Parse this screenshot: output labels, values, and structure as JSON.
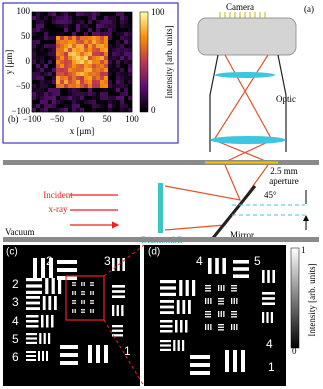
{
  "panel_b": {
    "label": "(b)",
    "x_label": "x [μm]",
    "y_label": "y [μm]",
    "x_ticks": [
      "−100",
      "−50",
      "0",
      "50",
      "100"
    ],
    "y_ticks": [
      "100",
      "50",
      "0",
      "−50",
      "−100"
    ],
    "colorbar_ticks": [
      "100",
      "0"
    ],
    "colorbar_label": "Intensity [arb. units]"
  },
  "panel_a": {
    "label": "(a)",
    "camera": "Camera",
    "optic": "Optic",
    "aperture_size": "2.5 mm",
    "aperture": "aperture",
    "angle": "45°",
    "incident_1": "Incident",
    "incident_2": "x-ray",
    "diamond": "Diamond:B",
    "mirror": "Mirror",
    "vacuum": "Vacuum"
  },
  "panel_c": {
    "label": "(c)",
    "numbers": [
      "2",
      "3",
      "2",
      "3",
      "4",
      "5",
      "6",
      "1"
    ]
  },
  "panel_d": {
    "label": "(d)",
    "numbers": [
      "4",
      "5",
      "4",
      "1"
    ],
    "colorbar_ticks": [
      "1",
      "0"
    ],
    "colorbar_label": "Intensity [arb. units]"
  }
}
